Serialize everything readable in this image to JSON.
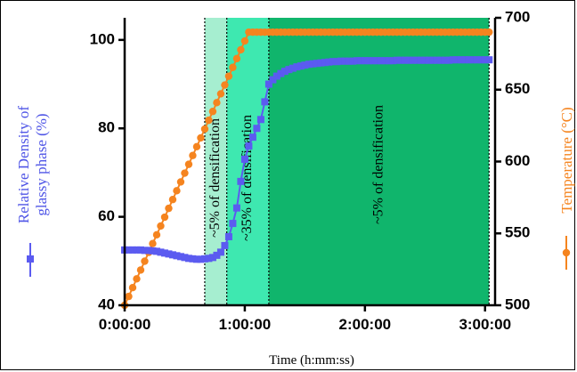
{
  "chart_data": {
    "type": "line",
    "xlabel": "Time (h:mm:ss)",
    "ylabel_left": [
      "Relative Density of",
      "glassy phase (%)"
    ],
    "ylabel_right": "Temperature (°C)",
    "x_unit": "minutes",
    "xlim": [
      0,
      185
    ],
    "ylim_left": [
      40,
      105
    ],
    "ylim_right": [
      500,
      700
    ],
    "x_ticks": [
      {
        "value": 0,
        "label": "0:00:00"
      },
      {
        "value": 60,
        "label": "1:00:00"
      },
      {
        "value": 120,
        "label": "2:00:00"
      },
      {
        "value": 180,
        "label": "3:00:00"
      }
    ],
    "y_left_ticks": [
      40,
      60,
      80,
      100
    ],
    "y_right_ticks": [
      500,
      550,
      600,
      650,
      700
    ],
    "bands": [
      {
        "x0": 40,
        "x1": 51,
        "color": "#a6eed0",
        "label": "~5% of densification"
      },
      {
        "x0": 51,
        "x1": 72,
        "color": "#3ee8b0",
        "label": "~35% of densification"
      },
      {
        "x0": 72,
        "x1": 182,
        "color": "#10b56c",
        "label": "~5% of densification"
      }
    ],
    "band_boundaries": [
      40,
      51,
      72,
      182
    ],
    "series": [
      {
        "name": "Relative Density of glassy phase (%)",
        "axis": "left",
        "color": "#5b5bf0",
        "marker": "square",
        "x": [
          0,
          2,
          4,
          6,
          8,
          10,
          12,
          14,
          16,
          18,
          20,
          22,
          24,
          26,
          28,
          30,
          32,
          34,
          36,
          38,
          40,
          42,
          44,
          46,
          48,
          50,
          52,
          54,
          56,
          58,
          60,
          62,
          64,
          66,
          68,
          70,
          72,
          74,
          76,
          78,
          80,
          82,
          84,
          86,
          88,
          90,
          92,
          94,
          96,
          98,
          100,
          102,
          104,
          106,
          108,
          110,
          112,
          114,
          116,
          118,
          120,
          122,
          124,
          126,
          128,
          130,
          132,
          134,
          136,
          138,
          140,
          142,
          144,
          146,
          148,
          150,
          152,
          154,
          156,
          158,
          160,
          162,
          164,
          166,
          168,
          170,
          172,
          174,
          176,
          178,
          180,
          182
        ],
        "y": [
          52.5,
          52.5,
          52.5,
          52.5,
          52.5,
          52.4,
          52.4,
          52.3,
          52.2,
          52.0,
          51.8,
          51.6,
          51.4,
          51.2,
          51.0,
          50.8,
          50.6,
          50.5,
          50.4,
          50.4,
          50.5,
          50.6,
          50.8,
          51.3,
          52.0,
          53.5,
          55.5,
          58.5,
          62.0,
          68.0,
          73.0,
          76.0,
          78.0,
          80.0,
          82.0,
          86.0,
          90.0,
          91.0,
          91.8,
          92.4,
          92.9,
          93.3,
          93.6,
          93.9,
          94.1,
          94.3,
          94.5,
          94.6,
          94.7,
          94.8,
          94.9,
          95.0,
          95.1,
          95.1,
          95.2,
          95.2,
          95.2,
          95.2,
          95.3,
          95.3,
          95.3,
          95.3,
          95.3,
          95.3,
          95.3,
          95.3,
          95.3,
          95.3,
          95.4,
          95.4,
          95.4,
          95.4,
          95.4,
          95.4,
          95.4,
          95.4,
          95.4,
          95.4,
          95.4,
          95.4,
          95.4,
          95.4,
          95.5,
          95.5,
          95.5,
          95.5,
          95.5,
          95.5,
          95.5,
          95.5,
          95.5,
          95.5
        ]
      },
      {
        "name": "Temperature (°C)",
        "axis": "right",
        "color": "#f5841f",
        "marker": "circle",
        "ramp": {
          "x_start": 0,
          "y_start": 500,
          "x_end": 62,
          "y_end": 690,
          "step": 2
        },
        "hold": {
          "x_start": 62,
          "x_end": 182,
          "y": 690,
          "step": 2
        }
      }
    ]
  }
}
